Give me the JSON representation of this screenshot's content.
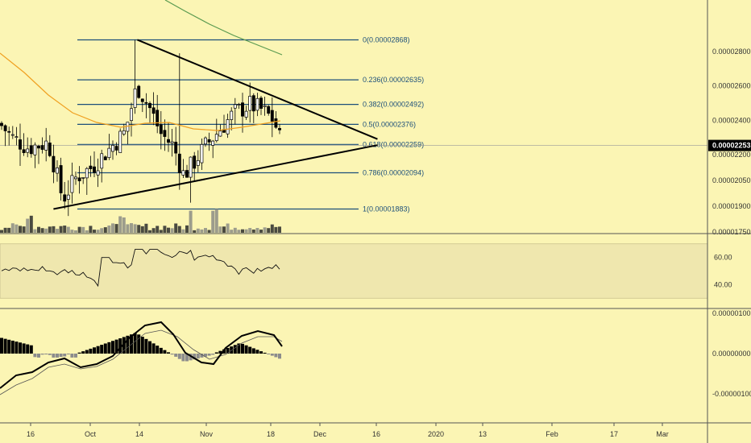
{
  "colors": {
    "background": "#fbf5b4",
    "panel_border": "#555555",
    "fib_line": "#1c4f7a",
    "candle": "#000000",
    "ma_orange": "#f0a020",
    "ma_green": "#5a9a50",
    "trendline": "#000000",
    "rsi_line": "#111111",
    "rsi_band": "#efe7ae",
    "macd_line": "#000000",
    "signal_line": "#555555",
    "hist_pos": "#000000",
    "hist_neg": "#8c8c8c",
    "price_tag": "#000000"
  },
  "chart_data": [
    {
      "type": "candlestick",
      "panel": "price",
      "price_axis_labels": [
        "0.00002800",
        "0.00002600",
        "0.00002400",
        "0.00002200",
        "0.00002050",
        "0.00001900",
        "0.00001750"
      ],
      "last_price_label": "0.00002253",
      "fibonacci_levels": [
        {
          "label": "0(0.00002868)",
          "price": 2.868e-05
        },
        {
          "label": "0.236(0.00002635)",
          "price": 2.635e-05
        },
        {
          "label": "0.382(0.00002492)",
          "price": 2.492e-05
        },
        {
          "label": "0.5(0.00002376)",
          "price": 2.376e-05
        },
        {
          "label": "0.618(0.00002259)",
          "price": 2.259e-05
        },
        {
          "label": "0.786(0.00002094)",
          "price": 2.094e-05
        },
        {
          "label": "1(0.00001883)",
          "price": 1.883e-05
        }
      ],
      "trendlines": [
        {
          "from": [
            "Oct 14",
            2.868e-05
          ],
          "to": [
            "Dec 16",
            2.29e-05
          ]
        },
        {
          "from": [
            "Sep 22",
            1.883e-05
          ],
          "to": [
            "Dec 16",
            2.255e-05
          ]
        }
      ],
      "price_range": [
        1.74e-05,
        3.1e-05
      ]
    },
    {
      "type": "line",
      "panel": "rsi",
      "axis_labels": [
        "60.00",
        "40.00"
      ],
      "band": [
        70,
        30
      ],
      "range": [
        23,
        77
      ]
    },
    {
      "type": "macd",
      "panel": "macd",
      "axis_labels": [
        "0.00000100",
        "0.00000000",
        "-0.00000100"
      ],
      "range": [
        -1.7e-06,
        1.1e-06
      ]
    },
    {
      "type": "time_axis",
      "tick_labels": [
        "16",
        "Oct",
        "14",
        "Nov",
        "18",
        "Dec",
        "16",
        "2020",
        "13",
        "Feb",
        "17",
        "Mar"
      ]
    }
  ]
}
